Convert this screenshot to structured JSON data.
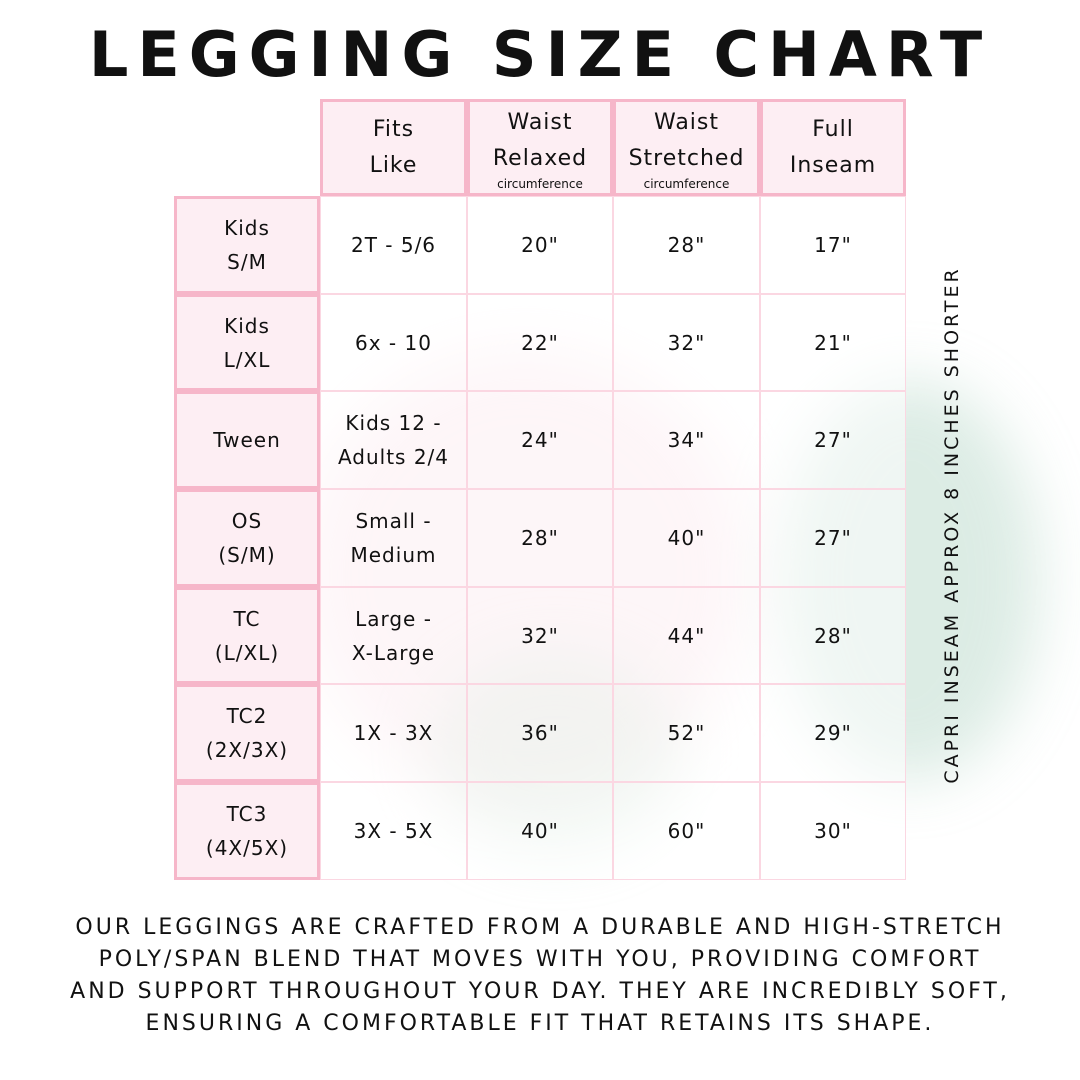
{
  "title": "LEGGING SIZE CHART",
  "headers": [
    {
      "lines": [
        "Fits",
        "Like"
      ],
      "sub": ""
    },
    {
      "lines": [
        "Waist",
        "Relaxed"
      ],
      "sub": "circumference"
    },
    {
      "lines": [
        "Waist",
        "Stretched"
      ],
      "sub": "circumference"
    },
    {
      "lines": [
        "Full",
        "Inseam"
      ],
      "sub": ""
    }
  ],
  "rows": [
    {
      "size": [
        "Kids",
        "S/M"
      ],
      "fits": [
        "2T - 5/6"
      ],
      "relaxed": "20\"",
      "stretched": "28\"",
      "inseam": "17\""
    },
    {
      "size": [
        "Kids",
        "L/XL"
      ],
      "fits": [
        "6x - 10"
      ],
      "relaxed": "22\"",
      "stretched": "32\"",
      "inseam": "21\""
    },
    {
      "size": [
        "Tween"
      ],
      "fits": [
        "Kids 12 -",
        "Adults 2/4"
      ],
      "relaxed": "24\"",
      "stretched": "34\"",
      "inseam": "27\""
    },
    {
      "size": [
        "OS",
        "(S/M)"
      ],
      "fits": [
        "Small -",
        "Medium"
      ],
      "relaxed": "28\"",
      "stretched": "40\"",
      "inseam": "27\""
    },
    {
      "size": [
        "TC",
        "(L/XL)"
      ],
      "fits": [
        "Large -",
        "X-Large"
      ],
      "relaxed": "32\"",
      "stretched": "44\"",
      "inseam": "28\""
    },
    {
      "size": [
        "TC2",
        "(2X/3X)"
      ],
      "fits": [
        "1X - 3X"
      ],
      "relaxed": "36\"",
      "stretched": "52\"",
      "inseam": "29\""
    },
    {
      "size": [
        "TC3",
        "(4X/5X)"
      ],
      "fits": [
        "3X - 5X"
      ],
      "relaxed": "40\"",
      "stretched": "60\"",
      "inseam": "30\""
    }
  ],
  "side_note": "CAPRI INSEAM APPROX 8 INCHES SHORTER",
  "footer": [
    "Our leggings are crafted from a durable and high-stretch",
    "poly/span blend that moves with you, providing comfort",
    "and support throughout your day. They are incredibly soft,",
    "ensuring a comfortable fit that retains its shape."
  ],
  "colors": {
    "header_bg": "#fdeef3",
    "border": "#f6b6c9"
  }
}
